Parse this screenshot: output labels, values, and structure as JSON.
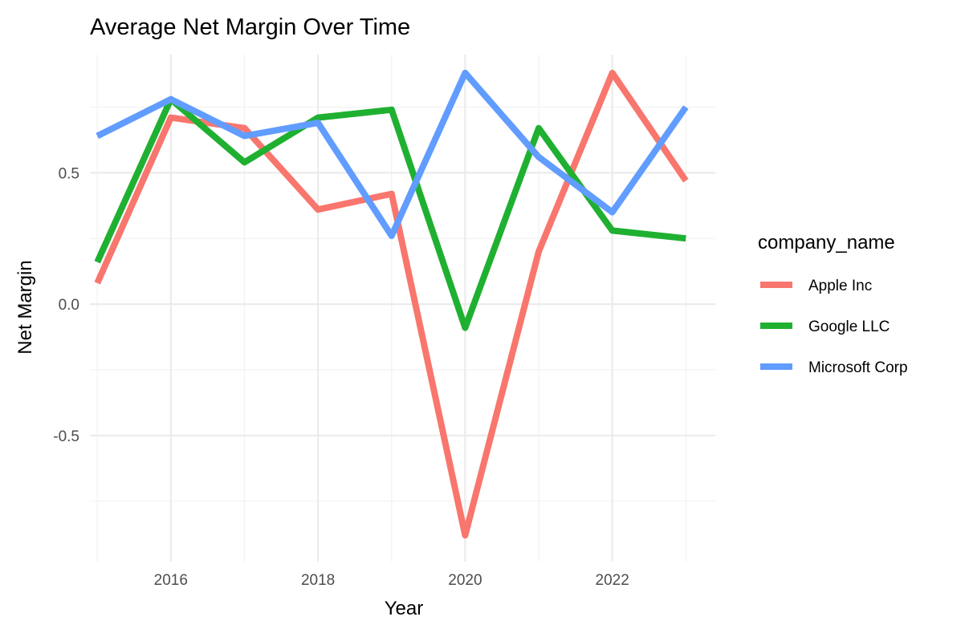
{
  "chart_data": {
    "type": "line",
    "title": "Average Net Margin Over Time",
    "xlabel": "Year",
    "ylabel": "Net Margin",
    "x": [
      2015,
      2016,
      2017,
      2018,
      2019,
      2020,
      2021,
      2022,
      2023
    ],
    "xlim": [
      2014.9,
      2023.4
    ],
    "ylim": [
      -0.98,
      0.95
    ],
    "x_ticks": [
      2016,
      2018,
      2020,
      2022
    ],
    "x_tick_labels": [
      "2016",
      "2018",
      "2020",
      "2022"
    ],
    "y_ticks": [
      -0.5,
      0.0,
      0.5
    ],
    "y_tick_labels": [
      "-0.5",
      "0.0",
      "0.5"
    ],
    "grid": true,
    "legend_title": "company_name",
    "legend_position": "right",
    "series": [
      {
        "name": "Apple Inc",
        "color": "#F8766D",
        "values": [
          0.08,
          0.71,
          0.67,
          0.36,
          0.42,
          -0.88,
          0.2,
          0.88,
          0.47
        ]
      },
      {
        "name": "Google LLC",
        "color": "#1FB031",
        "values": [
          0.16,
          0.78,
          0.54,
          0.71,
          0.74,
          -0.09,
          0.67,
          0.28,
          0.25
        ]
      },
      {
        "name": "Microsoft Corp",
        "color": "#619CFF",
        "values": [
          0.64,
          0.78,
          0.64,
          0.69,
          0.26,
          0.88,
          0.56,
          0.35,
          0.75
        ]
      }
    ]
  }
}
